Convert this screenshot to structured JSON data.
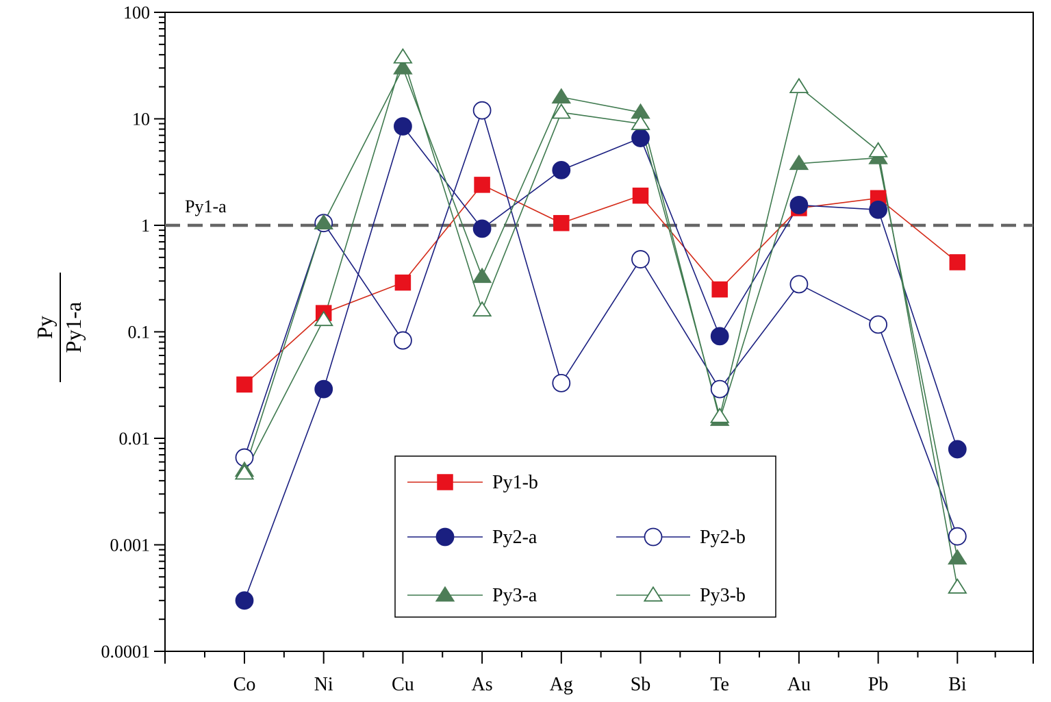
{
  "chart_data": {
    "type": "line",
    "yscale": "log",
    "ylim": [
      0.0001,
      100
    ],
    "ylabel_numerator": "Py",
    "ylabel_denominator": "Py1-a",
    "categories": [
      "Co",
      "Ni",
      "Cu",
      "As",
      "Ag",
      "Sb",
      "Te",
      "Au",
      "Pb",
      "Bi"
    ],
    "y_ticks": [
      {
        "value": 0.0001,
        "label": "0.0001"
      },
      {
        "value": 0.001,
        "label": "0.001"
      },
      {
        "value": 0.01,
        "label": "0.01"
      },
      {
        "value": 0.1,
        "label": "0.1"
      },
      {
        "value": 1,
        "label": "1"
      },
      {
        "value": 10,
        "label": "10"
      },
      {
        "value": 100,
        "label": "100"
      }
    ],
    "reference_line": {
      "value": 1,
      "label": "Py1-a",
      "color": "#666666"
    },
    "series": [
      {
        "name": "Py1-b",
        "marker": "square",
        "filled": true,
        "color": "#e8121d",
        "line_color": "#d42a18",
        "values": [
          0.032,
          0.15,
          0.29,
          2.4,
          1.05,
          1.9,
          0.25,
          1.45,
          1.8,
          0.45
        ]
      },
      {
        "name": "Py2-a",
        "marker": "circle",
        "filled": true,
        "color": "#1a1f80",
        "line_color": "#1a1f80",
        "values": [
          0.0003,
          0.029,
          8.5,
          0.93,
          3.3,
          6.6,
          0.091,
          1.55,
          1.4,
          0.0079
        ]
      },
      {
        "name": "Py2-b",
        "marker": "circle",
        "filled": false,
        "color": "#1a1f80",
        "line_color": "#1a1f80",
        "values": [
          0.0066,
          1.05,
          0.083,
          12,
          0.033,
          0.48,
          0.029,
          0.28,
          0.117,
          0.0012
        ]
      },
      {
        "name": "Py3-a",
        "marker": "triangle",
        "filled": true,
        "color": "#4d7d57",
        "line_color": "#3f7a4f",
        "values": [
          0.005,
          1.05,
          30,
          0.33,
          16,
          11.5,
          0.015,
          3.8,
          4.3,
          0.00075
        ]
      },
      {
        "name": "Py3-b",
        "marker": "triangle",
        "filled": false,
        "color": "#3f7a4f",
        "line_color": "#3f7a4f",
        "values": [
          0.0047,
          0.13,
          38,
          0.16,
          11.5,
          9,
          0.016,
          20,
          5,
          0.0004
        ]
      }
    ],
    "legend": {
      "placement": "bottom-center",
      "rows": [
        [
          "Py1-b"
        ],
        [
          "Py2-a",
          "Py2-b"
        ],
        [
          "Py3-a",
          "Py3-b"
        ]
      ]
    }
  }
}
